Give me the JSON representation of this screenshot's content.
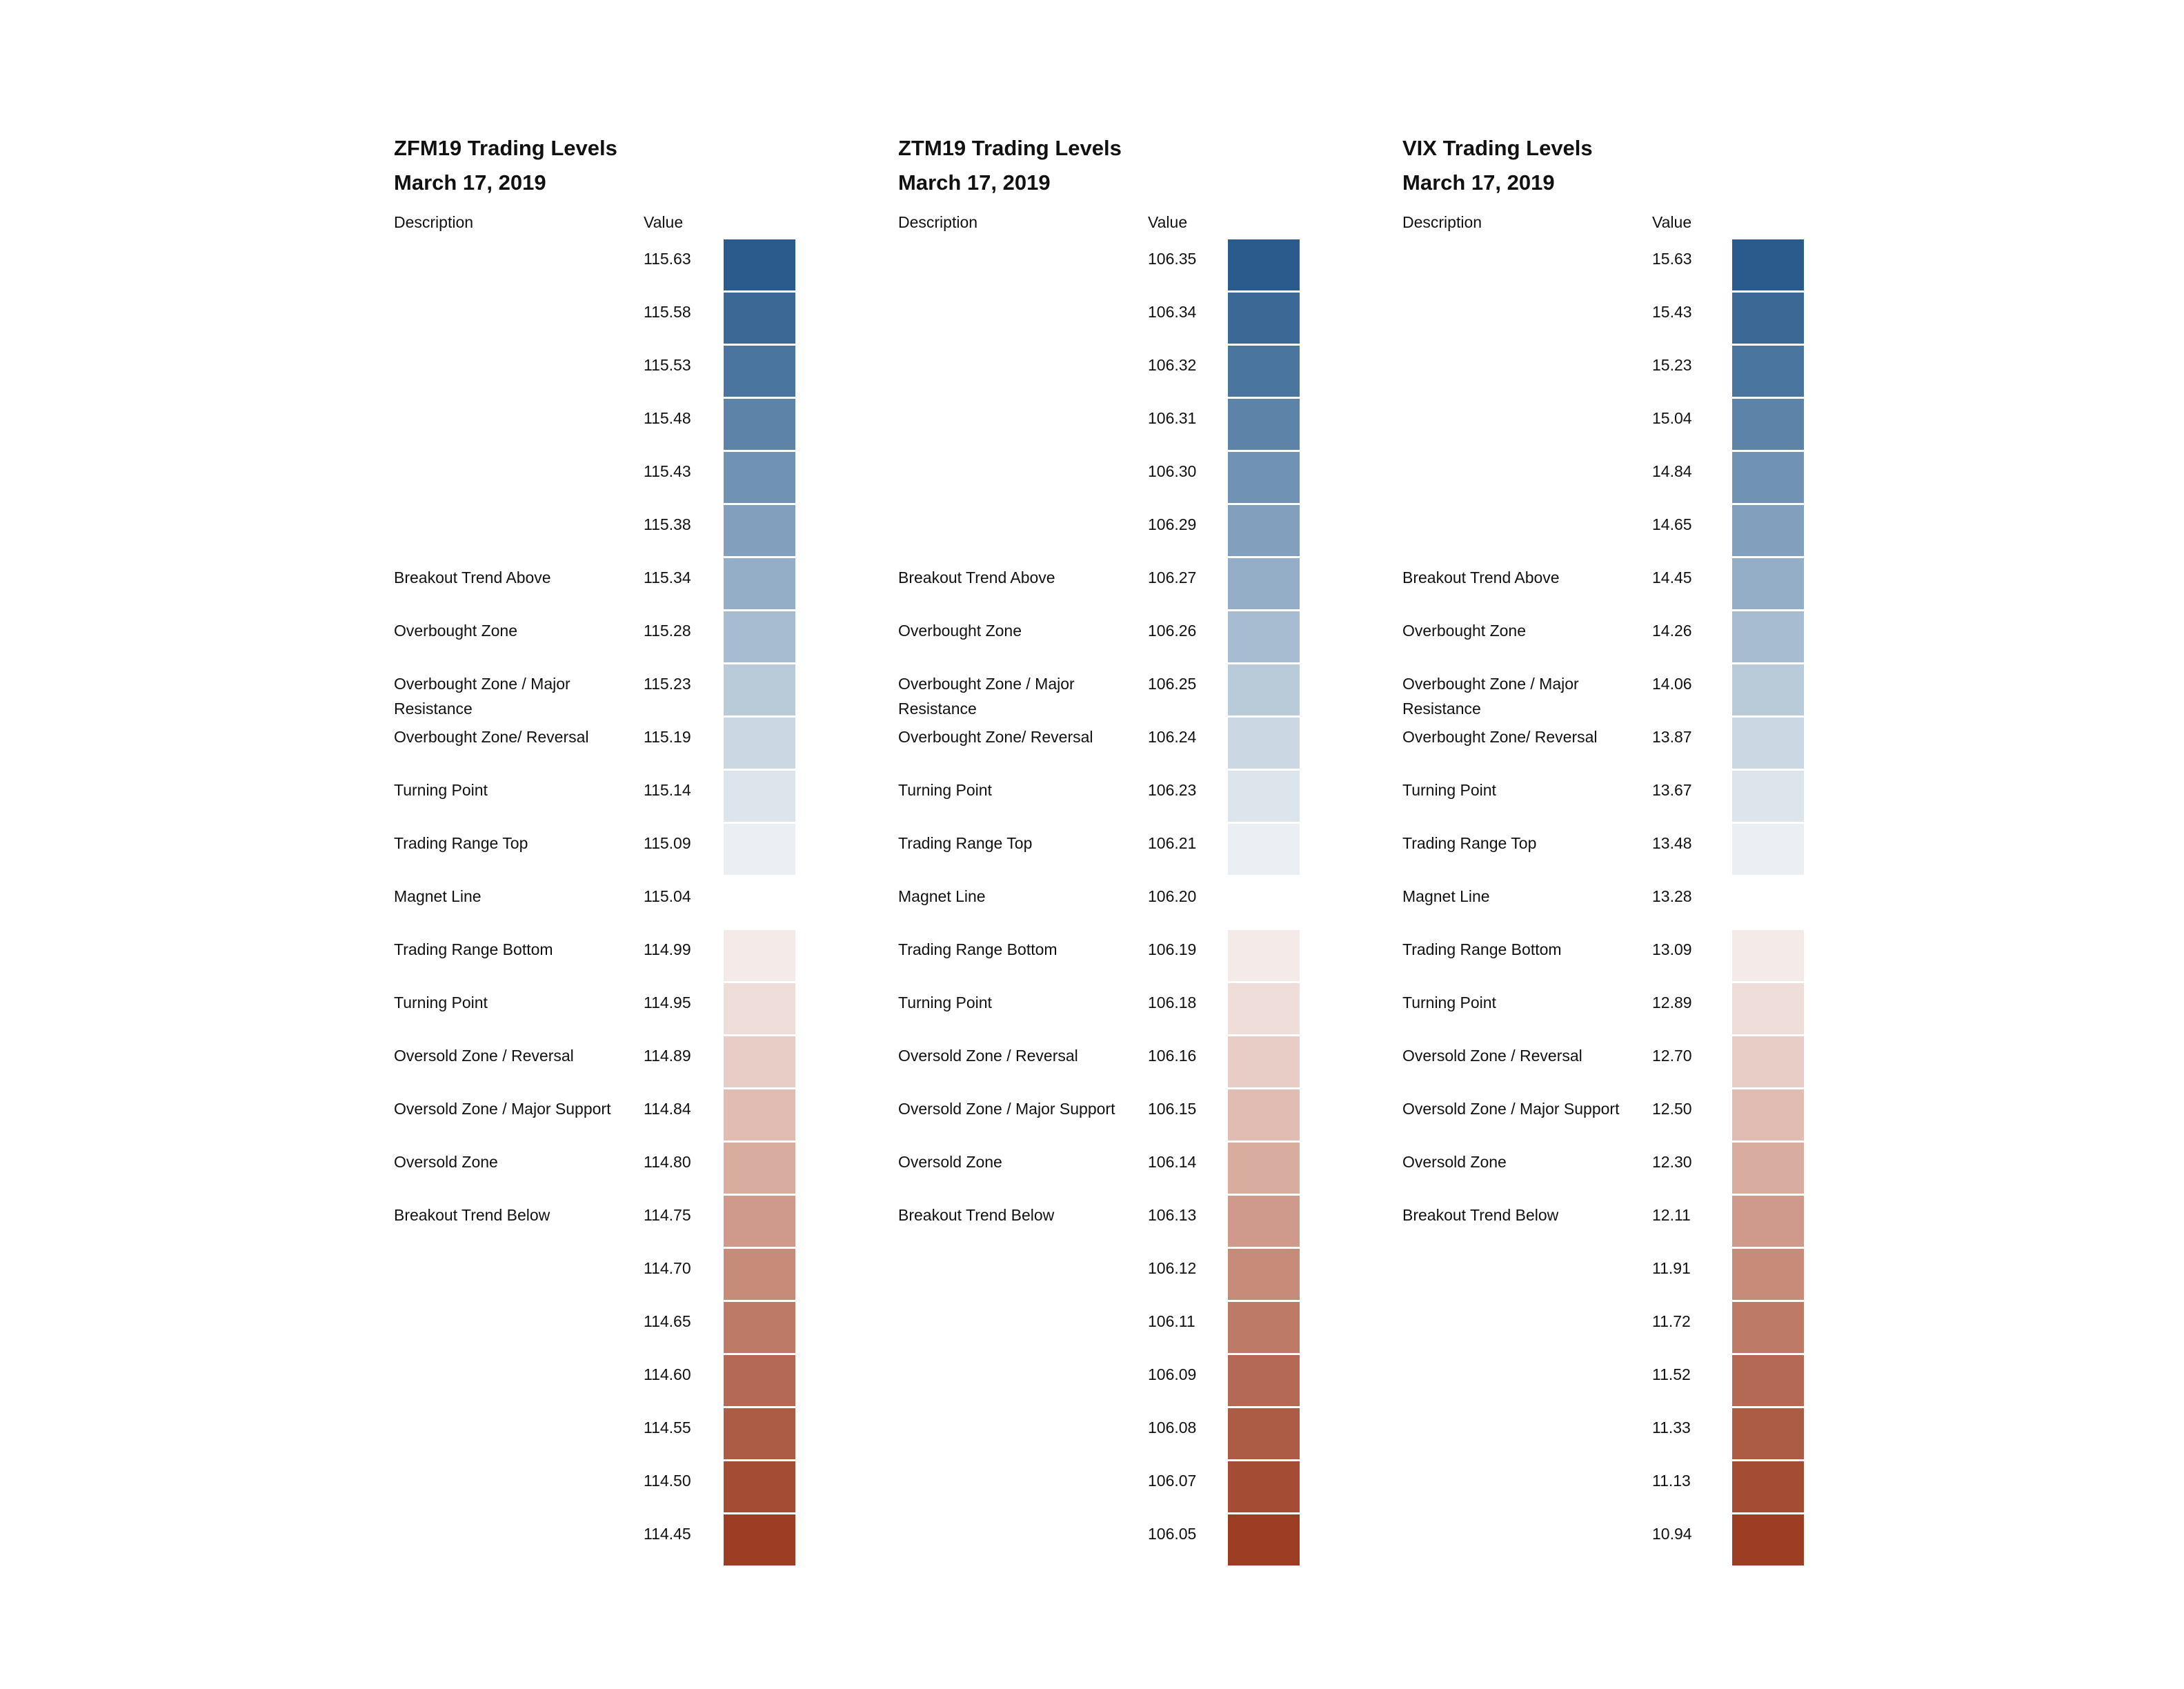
{
  "panels": [
    {
      "title": "ZFM19 Trading Levels",
      "date": "March 17, 2019",
      "desc_header": "Description",
      "value_header": "Value",
      "rows": [
        {
          "desc": "",
          "value": "115.63",
          "color": "#2b5a8c"
        },
        {
          "desc": "",
          "value": "115.58",
          "color": "#3b6894"
        },
        {
          "desc": "",
          "value": "115.53",
          "color": "#4a759f"
        },
        {
          "desc": "",
          "value": "115.48",
          "color": "#5d83a9"
        },
        {
          "desc": "",
          "value": "115.43",
          "color": "#7092b3"
        },
        {
          "desc": "",
          "value": "115.38",
          "color": "#82a0bd"
        },
        {
          "desc": "Breakout Trend Above",
          "value": "115.34",
          "color": "#95aec7"
        },
        {
          "desc": "Overbought Zone",
          "value": "115.28",
          "color": "#a7bcd1"
        },
        {
          "desc": "Overbought Zone / Major Resistance",
          "value": "115.23",
          "color": "#b9cad9"
        },
        {
          "desc": "Overbought Zone/ Reversal",
          "value": "115.19",
          "color": "#cbd7e2"
        },
        {
          "desc": "Turning Point",
          "value": "115.14",
          "color": "#dce4ec"
        },
        {
          "desc": "Trading Range Top",
          "value": "115.09",
          "color": "#ebeff4"
        },
        {
          "desc": "Magnet Line",
          "value": "115.04",
          "color": "#ffffff"
        },
        {
          "desc": "Trading Range Bottom",
          "value": "114.99",
          "color": "#f4ebe8"
        },
        {
          "desc": "Turning Point",
          "value": "114.95",
          "color": "#eeddd8"
        },
        {
          "desc": "Oversold Zone / Reversal",
          "value": "114.89",
          "color": "#e7cdc5"
        },
        {
          "desc": "Oversold Zone / Major Support",
          "value": "114.84",
          "color": "#e0bcb2"
        },
        {
          "desc": "Oversold Zone",
          "value": "114.80",
          "color": "#d8ac9f"
        },
        {
          "desc": "Breakout Trend Below",
          "value": "114.75",
          "color": "#cf9a8b"
        },
        {
          "desc": "",
          "value": "114.70",
          "color": "#c78b7a"
        },
        {
          "desc": "",
          "value": "114.65",
          "color": "#bd7b67"
        },
        {
          "desc": "",
          "value": "114.60",
          "color": "#b46955"
        },
        {
          "desc": "",
          "value": "114.55",
          "color": "#ac5b45"
        },
        {
          "desc": "",
          "value": "114.50",
          "color": "#a44c34"
        },
        {
          "desc": "",
          "value": "114.45",
          "color": "#9c3e24"
        }
      ]
    },
    {
      "title": "ZTM19 Trading Levels",
      "date": "March 17, 2019",
      "desc_header": "Description",
      "value_header": "Value",
      "rows": [
        {
          "desc": "",
          "value": "106.35",
          "color": "#2b5a8c"
        },
        {
          "desc": "",
          "value": "106.34",
          "color": "#3b6894"
        },
        {
          "desc": "",
          "value": "106.32",
          "color": "#4a759f"
        },
        {
          "desc": "",
          "value": "106.31",
          "color": "#5d83a9"
        },
        {
          "desc": "",
          "value": "106.30",
          "color": "#7092b3"
        },
        {
          "desc": "",
          "value": "106.29",
          "color": "#82a0bd"
        },
        {
          "desc": "Breakout Trend Above",
          "value": "106.27",
          "color": "#95aec7"
        },
        {
          "desc": "Overbought Zone",
          "value": "106.26",
          "color": "#a7bcd1"
        },
        {
          "desc": "Overbought Zone / Major Resistance",
          "value": "106.25",
          "color": "#b9cad9"
        },
        {
          "desc": "Overbought Zone/ Reversal",
          "value": "106.24",
          "color": "#cbd7e2"
        },
        {
          "desc": "Turning Point",
          "value": "106.23",
          "color": "#dce4ec"
        },
        {
          "desc": "Trading Range Top",
          "value": "106.21",
          "color": "#ebeff4"
        },
        {
          "desc": "Magnet Line",
          "value": "106.20",
          "color": "#ffffff"
        },
        {
          "desc": "Trading Range Bottom",
          "value": "106.19",
          "color": "#f4ebe8"
        },
        {
          "desc": "Turning Point",
          "value": "106.18",
          "color": "#eeddd8"
        },
        {
          "desc": "Oversold Zone / Reversal",
          "value": "106.16",
          "color": "#e7cdc5"
        },
        {
          "desc": "Oversold Zone / Major Support",
          "value": "106.15",
          "color": "#e0bcb2"
        },
        {
          "desc": "Oversold Zone",
          "value": "106.14",
          "color": "#d8ac9f"
        },
        {
          "desc": "Breakout Trend Below",
          "value": "106.13",
          "color": "#cf9a8b"
        },
        {
          "desc": "",
          "value": "106.12",
          "color": "#c78b7a"
        },
        {
          "desc": "",
          "value": "106.11",
          "color": "#bd7b67"
        },
        {
          "desc": "",
          "value": "106.09",
          "color": "#b46955"
        },
        {
          "desc": "",
          "value": "106.08",
          "color": "#ac5b45"
        },
        {
          "desc": "",
          "value": "106.07",
          "color": "#a44c34"
        },
        {
          "desc": "",
          "value": "106.05",
          "color": "#9c3e24"
        }
      ]
    },
    {
      "title": "VIX Trading Levels",
      "date": "March 17, 2019",
      "desc_header": "Description",
      "value_header": "Value",
      "rows": [
        {
          "desc": "",
          "value": "15.63",
          "color": "#2b5a8c"
        },
        {
          "desc": "",
          "value": "15.43",
          "color": "#3b6894"
        },
        {
          "desc": "",
          "value": "15.23",
          "color": "#4a759f"
        },
        {
          "desc": "",
          "value": "15.04",
          "color": "#5d83a9"
        },
        {
          "desc": "",
          "value": "14.84",
          "color": "#7092b3"
        },
        {
          "desc": "",
          "value": "14.65",
          "color": "#82a0bd"
        },
        {
          "desc": "Breakout Trend Above",
          "value": "14.45",
          "color": "#95aec7"
        },
        {
          "desc": "Overbought Zone",
          "value": "14.26",
          "color": "#a7bcd1"
        },
        {
          "desc": "Overbought Zone / Major Resistance",
          "value": "14.06",
          "color": "#b9cad9"
        },
        {
          "desc": "Overbought Zone/ Reversal",
          "value": "13.87",
          "color": "#cbd7e2"
        },
        {
          "desc": "Turning Point",
          "value": "13.67",
          "color": "#dce4ec"
        },
        {
          "desc": "Trading Range Top",
          "value": "13.48",
          "color": "#ebeff4"
        },
        {
          "desc": "Magnet Line",
          "value": "13.28",
          "color": "#ffffff"
        },
        {
          "desc": "Trading Range Bottom",
          "value": "13.09",
          "color": "#f4ebe8"
        },
        {
          "desc": "Turning Point",
          "value": "12.89",
          "color": "#eeddd8"
        },
        {
          "desc": "Oversold Zone / Reversal",
          "value": "12.70",
          "color": "#e7cdc5"
        },
        {
          "desc": "Oversold Zone / Major Support",
          "value": "12.50",
          "color": "#e0bcb2"
        },
        {
          "desc": "Oversold Zone",
          "value": "12.30",
          "color": "#d8ac9f"
        },
        {
          "desc": "Breakout Trend Below",
          "value": "12.11",
          "color": "#cf9a8b"
        },
        {
          "desc": "",
          "value": "11.91",
          "color": "#c78b7a"
        },
        {
          "desc": "",
          "value": "11.72",
          "color": "#bd7b67"
        },
        {
          "desc": "",
          "value": "11.52",
          "color": "#b46955"
        },
        {
          "desc": "",
          "value": "11.33",
          "color": "#ac5b45"
        },
        {
          "desc": "",
          "value": "11.13",
          "color": "#a44c34"
        },
        {
          "desc": "",
          "value": "10.94",
          "color": "#9c3e24"
        }
      ]
    }
  ]
}
